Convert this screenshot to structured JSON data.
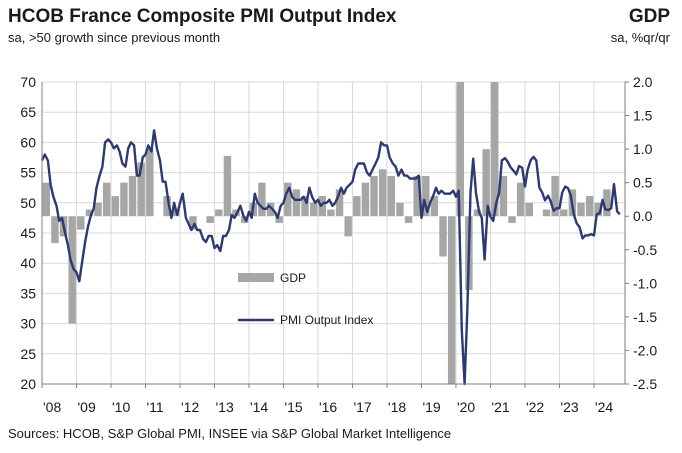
{
  "header": {
    "title": "HCOB France Composite  PMI Output Index",
    "subtitle": "sa, >50 growth since previous month",
    "right_title": "GDP",
    "right_subtitle": "sa, %qr/qr"
  },
  "footer": {
    "source": "Sources: HCOB, S&P Global PMI, INSEE via S&P Global Market Intelligence"
  },
  "colors": {
    "gdp_bar": "#a6a6a6",
    "pmi_line": "#2e3a6e",
    "grid": "#d9d9d9",
    "axis": "#7f7f7f"
  },
  "chart_data": {
    "type": "bar+line",
    "x_tick_labels": [
      "'08",
      "'09",
      "'10",
      "'11",
      "'12",
      "'13",
      "'14",
      "'15",
      "'16",
      "'17",
      "'18",
      "'19",
      "'20",
      "'21",
      "'22",
      "'23",
      "'24"
    ],
    "x_range": [
      2008.0,
      2024.9
    ],
    "left_axis": {
      "label": "PMI Output Index",
      "ylim": [
        20,
        70
      ],
      "ticks": [
        20,
        25,
        30,
        35,
        40,
        45,
        50,
        55,
        60,
        65,
        70
      ]
    },
    "right_axis": {
      "label": "GDP",
      "ylim": [
        -2.5,
        2.0
      ],
      "ticks": [
        "2.0",
        "1.5",
        "1.0",
        "0.5",
        "0.0",
        "-0.5",
        "-1.0",
        "-1.5",
        "-2.0",
        "-2.5"
      ]
    },
    "legend": [
      {
        "name": "GDP",
        "kind": "bar"
      },
      {
        "name": "PMI Output Index",
        "kind": "line"
      }
    ],
    "gdp": {
      "name": "GDP",
      "axis": "right",
      "quarters_start": 2008.0,
      "values": [
        0.5,
        -0.4,
        -0.3,
        -1.6,
        -0.2,
        0.1,
        0.2,
        0.5,
        0.3,
        0.5,
        0.6,
        0.8,
        1.0,
        0.0,
        0.3,
        0.1,
        0.0,
        -0.2,
        0.0,
        -0.1,
        0.1,
        0.9,
        0.1,
        -0.1,
        0.2,
        0.5,
        0.2,
        -0.1,
        0.5,
        0.4,
        0.3,
        0.2,
        0.3,
        0.1,
        0.4,
        -0.3,
        0.3,
        0.5,
        0.6,
        0.7,
        0.6,
        0.2,
        -0.1,
        0.6,
        0.6,
        0.3,
        -0.6,
        -5.6,
        18.5,
        -1.1,
        0.1,
        1.0,
        3.0,
        0.6,
        -0.1,
        0.5,
        0.2,
        0.0,
        0.1,
        0.6,
        0.1,
        0.4,
        0.2,
        0.3,
        0.2,
        0.4
      ]
    },
    "pmi": {
      "name": "PMI Output Index",
      "axis": "left",
      "points": [
        [
          2008.0,
          57.0
        ],
        [
          2008.08,
          58.0
        ],
        [
          2008.17,
          57.0
        ],
        [
          2008.25,
          53.0
        ],
        [
          2008.33,
          51.0
        ],
        [
          2008.42,
          49.5
        ],
        [
          2008.5,
          47.0
        ],
        [
          2008.58,
          47.5
        ],
        [
          2008.67,
          45.0
        ],
        [
          2008.75,
          43.0
        ],
        [
          2008.83,
          40.5
        ],
        [
          2008.92,
          39.0
        ],
        [
          2009.0,
          38.5
        ],
        [
          2009.08,
          37.0
        ],
        [
          2009.17,
          40.5
        ],
        [
          2009.25,
          43.5
        ],
        [
          2009.33,
          46.0
        ],
        [
          2009.42,
          48.0
        ],
        [
          2009.5,
          49.0
        ],
        [
          2009.58,
          52.5
        ],
        [
          2009.67,
          54.5
        ],
        [
          2009.75,
          56.0
        ],
        [
          2009.83,
          60.0
        ],
        [
          2009.92,
          60.5
        ],
        [
          2010.0,
          60.0
        ],
        [
          2010.08,
          59.0
        ],
        [
          2010.17,
          59.5
        ],
        [
          2010.25,
          58.5
        ],
        [
          2010.33,
          56.5
        ],
        [
          2010.42,
          56.0
        ],
        [
          2010.5,
          59.0
        ],
        [
          2010.58,
          60.0
        ],
        [
          2010.67,
          59.5
        ],
        [
          2010.75,
          54.5
        ],
        [
          2010.83,
          54.5
        ],
        [
          2010.92,
          57.5
        ],
        [
          2011.0,
          58.0
        ],
        [
          2011.08,
          59.5
        ],
        [
          2011.17,
          58.5
        ],
        [
          2011.25,
          62.0
        ],
        [
          2011.33,
          59.0
        ],
        [
          2011.42,
          57.0
        ],
        [
          2011.5,
          53.5
        ],
        [
          2011.58,
          53.5
        ],
        [
          2011.67,
          50.0
        ],
        [
          2011.75,
          47.5
        ],
        [
          2011.83,
          50.0
        ],
        [
          2011.92,
          48.0
        ],
        [
          2012.0,
          50.0
        ],
        [
          2012.08,
          51.5
        ],
        [
          2012.17,
          47.5
        ],
        [
          2012.25,
          46.5
        ],
        [
          2012.33,
          45.5
        ],
        [
          2012.42,
          46.5
        ],
        [
          2012.5,
          45.5
        ],
        [
          2012.58,
          45.5
        ],
        [
          2012.67,
          44.0
        ],
        [
          2012.75,
          43.5
        ],
        [
          2012.83,
          44.5
        ],
        [
          2012.92,
          44.5
        ],
        [
          2013.0,
          42.5
        ],
        [
          2013.08,
          43.0
        ],
        [
          2013.17,
          42.0
        ],
        [
          2013.25,
          44.5
        ],
        [
          2013.33,
          44.5
        ],
        [
          2013.42,
          45.5
        ],
        [
          2013.5,
          48.0
        ],
        [
          2013.58,
          47.5
        ],
        [
          2013.67,
          48.5
        ],
        [
          2013.75,
          49.5
        ],
        [
          2013.83,
          48.0
        ],
        [
          2013.92,
          47.0
        ],
        [
          2014.0,
          48.5
        ],
        [
          2014.08,
          47.5
        ],
        [
          2014.17,
          51.5
        ],
        [
          2014.25,
          50.0
        ],
        [
          2014.33,
          49.5
        ],
        [
          2014.42,
          49.0
        ],
        [
          2014.5,
          49.0
        ],
        [
          2014.58,
          49.5
        ],
        [
          2014.67,
          49.0
        ],
        [
          2014.75,
          48.5
        ],
        [
          2014.83,
          47.5
        ],
        [
          2014.92,
          49.5
        ],
        [
          2015.0,
          50.0
        ],
        [
          2015.08,
          51.5
        ],
        [
          2015.17,
          52.5
        ],
        [
          2015.25,
          51.0
        ],
        [
          2015.33,
          50.5
        ],
        [
          2015.42,
          50.5
        ],
        [
          2015.5,
          50.5
        ],
        [
          2015.58,
          51.0
        ],
        [
          2015.67,
          50.0
        ],
        [
          2015.75,
          52.5
        ],
        [
          2015.83,
          51.0
        ],
        [
          2015.92,
          50.0
        ],
        [
          2016.0,
          50.5
        ],
        [
          2016.08,
          49.5
        ],
        [
          2016.17,
          50.0
        ],
        [
          2016.25,
          50.0
        ],
        [
          2016.33,
          50.5
        ],
        [
          2016.42,
          49.5
        ],
        [
          2016.5,
          50.0
        ],
        [
          2016.58,
          51.0
        ],
        [
          2016.67,
          52.5
        ],
        [
          2016.75,
          51.5
        ],
        [
          2016.83,
          52.5
        ],
        [
          2016.92,
          53.0
        ],
        [
          2017.0,
          53.5
        ],
        [
          2017.08,
          55.5
        ],
        [
          2017.17,
          56.5
        ],
        [
          2017.25,
          56.5
        ],
        [
          2017.33,
          56.5
        ],
        [
          2017.42,
          55.0
        ],
        [
          2017.5,
          54.5
        ],
        [
          2017.58,
          55.5
        ],
        [
          2017.67,
          56.5
        ],
        [
          2017.75,
          57.5
        ],
        [
          2017.83,
          60.0
        ],
        [
          2017.92,
          59.5
        ],
        [
          2018.0,
          59.5
        ],
        [
          2018.08,
          57.5
        ],
        [
          2018.17,
          56.5
        ],
        [
          2018.25,
          56.0
        ],
        [
          2018.33,
          54.5
        ],
        [
          2018.42,
          55.5
        ],
        [
          2018.5,
          54.5
        ],
        [
          2018.58,
          54.5
        ],
        [
          2018.67,
          54.0
        ],
        [
          2018.75,
          54.0
        ],
        [
          2018.83,
          54.0
        ],
        [
          2018.92,
          54.5
        ],
        [
          2019.0,
          47.5
        ],
        [
          2019.08,
          50.5
        ],
        [
          2019.17,
          48.5
        ],
        [
          2019.25,
          50.0
        ],
        [
          2019.33,
          51.0
        ],
        [
          2019.42,
          52.5
        ],
        [
          2019.5,
          51.5
        ],
        [
          2019.58,
          52.0
        ],
        [
          2019.67,
          51.5
        ],
        [
          2019.75,
          51.5
        ],
        [
          2019.83,
          51.5
        ],
        [
          2019.92,
          52.0
        ],
        [
          2020.0,
          51.0
        ],
        [
          2020.08,
          52.0
        ],
        [
          2020.17,
          28.9
        ],
        [
          2020.25,
          11.1
        ],
        [
          2020.33,
          32.1
        ],
        [
          2020.42,
          51.7
        ],
        [
          2020.5,
          57.3
        ],
        [
          2020.58,
          51.6
        ],
        [
          2020.67,
          48.5
        ],
        [
          2020.75,
          47.5
        ],
        [
          2020.83,
          40.6
        ],
        [
          2020.92,
          49.5
        ],
        [
          2021.0,
          47.7
        ],
        [
          2021.08,
          47.0
        ],
        [
          2021.17,
          50.0
        ],
        [
          2021.25,
          51.6
        ],
        [
          2021.33,
          57.0
        ],
        [
          2021.42,
          57.4
        ],
        [
          2021.5,
          56.8
        ],
        [
          2021.58,
          55.9
        ],
        [
          2021.67,
          55.3
        ],
        [
          2021.75,
          54.7
        ],
        [
          2021.83,
          56.1
        ],
        [
          2021.92,
          55.8
        ],
        [
          2022.0,
          52.7
        ],
        [
          2022.08,
          55.5
        ],
        [
          2022.17,
          57.1
        ],
        [
          2022.25,
          57.6
        ],
        [
          2022.33,
          57.0
        ],
        [
          2022.42,
          52.5
        ],
        [
          2022.5,
          51.7
        ],
        [
          2022.58,
          50.4
        ],
        [
          2022.67,
          51.2
        ],
        [
          2022.75,
          50.2
        ],
        [
          2022.83,
          48.7
        ],
        [
          2022.92,
          49.1
        ],
        [
          2023.0,
          49.1
        ],
        [
          2023.08,
          51.7
        ],
        [
          2023.17,
          52.7
        ],
        [
          2023.25,
          52.4
        ],
        [
          2023.33,
          51.2
        ],
        [
          2023.42,
          48.0
        ],
        [
          2023.5,
          46.6
        ],
        [
          2023.58,
          46.0
        ],
        [
          2023.67,
          44.1
        ],
        [
          2023.75,
          44.6
        ],
        [
          2023.83,
          44.6
        ],
        [
          2023.92,
          44.8
        ],
        [
          2024.0,
          44.6
        ],
        [
          2024.08,
          48.1
        ],
        [
          2024.17,
          48.3
        ],
        [
          2024.25,
          50.5
        ],
        [
          2024.33,
          48.9
        ],
        [
          2024.42,
          48.8
        ],
        [
          2024.5,
          49.1
        ],
        [
          2024.58,
          53.1
        ],
        [
          2024.67,
          48.6
        ],
        [
          2024.75,
          48.1
        ]
      ]
    }
  }
}
